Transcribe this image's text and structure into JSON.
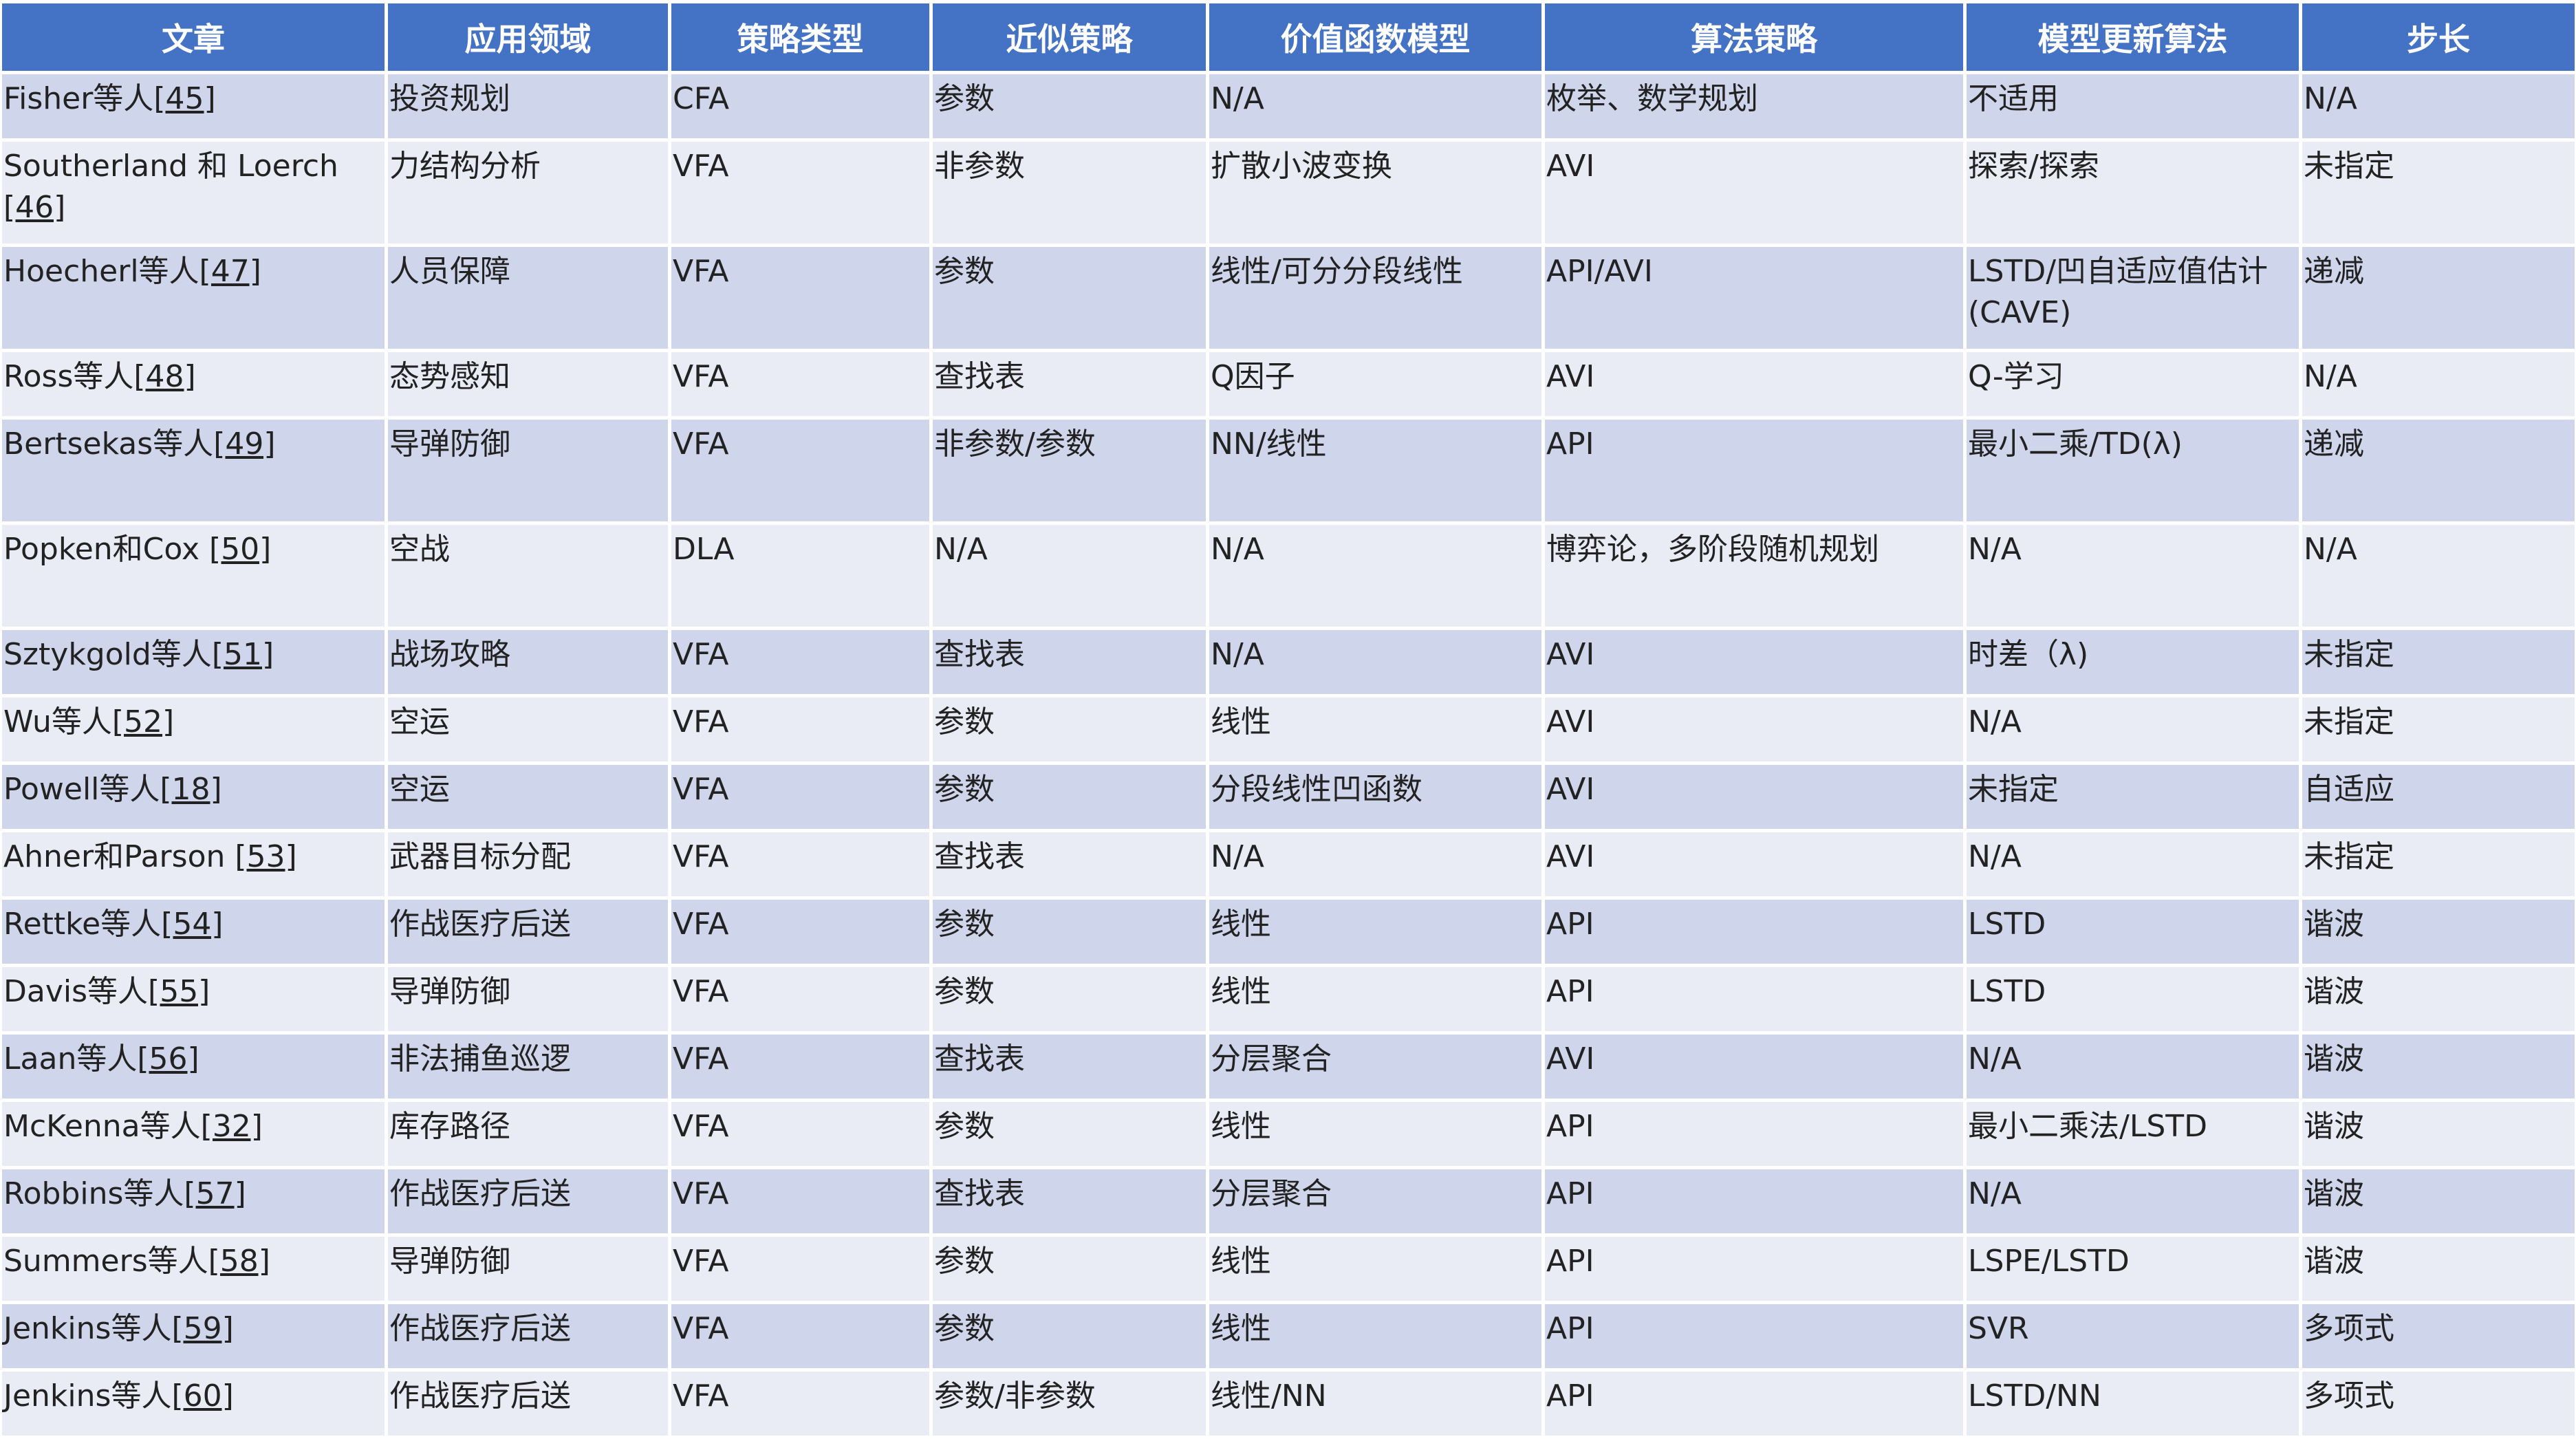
{
  "colors": {
    "header": "#4472c4",
    "row_odd": "#cfd5ea",
    "row_even": "#e9ebf5"
  },
  "headers": [
    "文章",
    "应用领域",
    "策略类型",
    "近似策略",
    "价值函数模型",
    "算法策略",
    "模型更新算法",
    "步长"
  ],
  "rows": [
    {
      "name": "Fisher等人",
      "ref": "[45]",
      "cells": [
        "投资规划",
        "CFA",
        "参数",
        "N/A",
        "枚举、数学规划",
        "不适用",
        "N/A"
      ]
    },
    {
      "name": "Southerland 和 Loerch ",
      "ref": "[46]",
      "cells": [
        "力结构分析",
        "VFA",
        "非参数",
        "扩散小波变换",
        "AVI",
        "探索/探索",
        "未指定"
      ]
    },
    {
      "name": "Hoecherl等人",
      "ref": "[47]",
      "cells": [
        "人员保障",
        "VFA",
        "参数",
        "线性/可分分段线性",
        "API/AVI",
        "LSTD/凹自适应值估计(CAVE)",
        "递减"
      ]
    },
    {
      "name": "Ross等人",
      "ref": "[48]",
      "cells": [
        "态势感知",
        "VFA",
        "查找表",
        "Q因子",
        "AVI",
        "Q-学习",
        "N/A"
      ]
    },
    {
      "name": "Bertsekas等人",
      "ref": "[49]",
      "cells": [
        "导弹防御",
        "VFA",
        "非参数/参数",
        "NN/线性",
        "API",
        "最小二乘/TD(λ)",
        "递减"
      ]
    },
    {
      "name": "Popken和Cox ",
      "ref": "[50]",
      "cells": [
        "空战",
        "DLA",
        "N/A",
        "N/A",
        "博弈论，多阶段随机规划",
        "N/A",
        "N/A"
      ]
    },
    {
      "name": "Sztykgold等人",
      "ref": "[51]",
      "cells": [
        "战场攻略",
        "VFA",
        "查找表",
        "N/A",
        "AVI",
        "时差（λ)",
        "未指定"
      ]
    },
    {
      "name": "Wu等人",
      "ref": "[52]",
      "cells": [
        "空运",
        "VFA",
        "参数",
        "线性",
        "AVI",
        "N/A",
        "未指定"
      ]
    },
    {
      "name": "Powell等人",
      "ref": "[18]",
      "cells": [
        "空运",
        "VFA",
        "参数",
        "分段线性凹函数",
        "AVI",
        "未指定",
        "自适应"
      ]
    },
    {
      "name": "Ahner和Parson ",
      "ref": "[53]",
      "cells": [
        "武器目标分配",
        "VFA",
        "查找表",
        "N/A",
        "AVI",
        "N/A",
        "未指定"
      ]
    },
    {
      "name": "Rettke等人",
      "ref": "[54]",
      "cells": [
        "作战医疗后送",
        "VFA",
        "参数",
        "线性",
        "API",
        "LSTD",
        "谐波"
      ]
    },
    {
      "name": "Davis等人",
      "ref": "[55]",
      "cells": [
        "导弹防御",
        "VFA",
        "参数",
        "线性",
        "API",
        "LSTD",
        "谐波"
      ]
    },
    {
      "name": "Laan等人",
      "ref": "[56]",
      "cells": [
        "非法捕鱼巡逻",
        "VFA",
        "查找表",
        "分层聚合",
        "AVI",
        "N/A",
        "谐波"
      ]
    },
    {
      "name": "McKenna等人",
      "ref": "[32]",
      "cells": [
        "库存路径",
        "VFA",
        "参数",
        "线性",
        "API",
        "最小二乘法/LSTD",
        "谐波"
      ]
    },
    {
      "name": "Robbins等人",
      "ref": "[57]",
      "cells": [
        "作战医疗后送",
        "VFA",
        "查找表",
        "分层聚合",
        "API",
        "N/A",
        "谐波"
      ]
    },
    {
      "name": "Summers等人",
      "ref": "[58]",
      "cells": [
        "导弹防御",
        "VFA",
        "参数",
        "线性",
        "API",
        "LSPE/LSTD",
        "谐波"
      ]
    },
    {
      "name": "Jenkins等人",
      "ref": "[59]",
      "cells": [
        "作战医疗后送",
        "VFA",
        "参数",
        "线性",
        "API",
        "SVR",
        "多项式"
      ]
    },
    {
      "name": "Jenkins等人",
      "ref": "[60]",
      "cells": [
        "作战医疗后送",
        "VFA",
        "参数/非参数",
        "线性/NN",
        "API",
        "LSTD/NN",
        "多项式"
      ]
    }
  ]
}
